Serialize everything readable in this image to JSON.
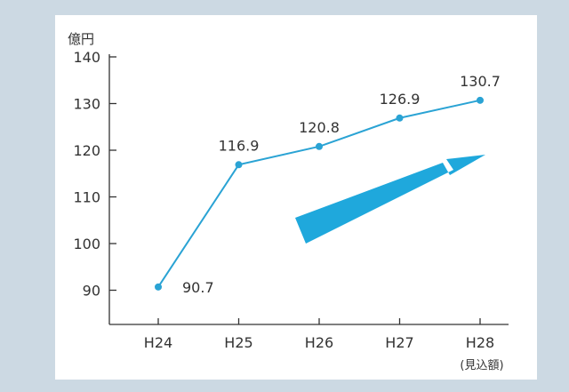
{
  "chart_data": {
    "type": "line",
    "unit_label": "億円",
    "categories": [
      "H24",
      "H25",
      "H26",
      "H27",
      "H28"
    ],
    "category_note": "(見込額)",
    "values": [
      90.7,
      116.9,
      120.8,
      126.9,
      130.7
    ],
    "data_labels": [
      "90.7",
      "116.9",
      "120.8",
      "126.9",
      "130.7"
    ],
    "yticks": [
      90,
      100,
      110,
      120,
      130,
      140
    ],
    "ylim": [
      88,
      140
    ],
    "title": "",
    "xlabel": "",
    "ylabel": "億円",
    "grid": false,
    "colors": {
      "line": "#2aa3d4",
      "arrow": "#1fa8dc",
      "axis": "#333333"
    }
  }
}
